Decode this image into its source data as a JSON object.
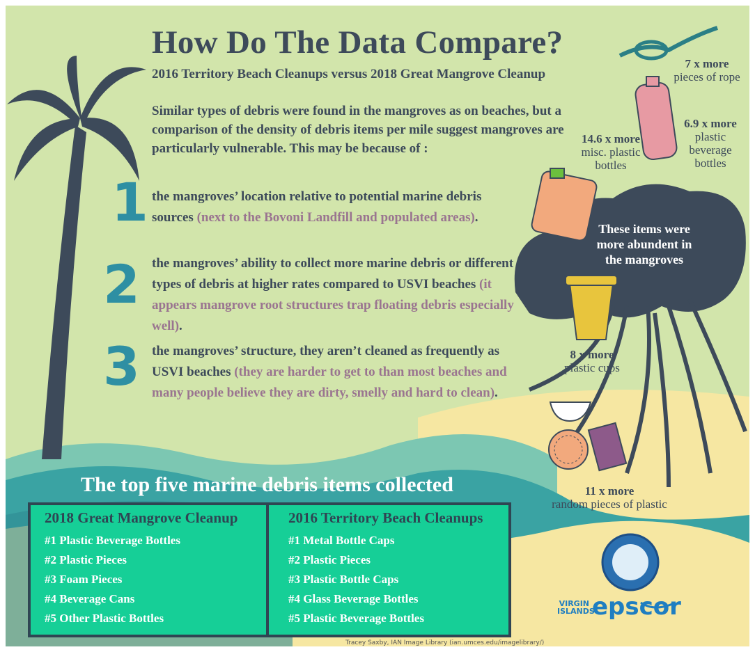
{
  "header": {
    "title": "How Do The Data Compare?",
    "subtitle": "2016 Territory Beach Cleanups versus 2018 Great Mangrove Cleanup"
  },
  "intro": "Similar types of debris were found in the mangroves as on beaches, but a comparison of the density of debris items per mile suggest mangroves are particularly vulnerable. This may be because of :",
  "reasons": [
    {
      "number": "1",
      "text": "the mangroves’ location relative to potential marine debris sources",
      "note": "(next to the Bovoni Landfill and populated areas)",
      "end": "."
    },
    {
      "number": "2",
      "text": "the mangroves’ ability to collect more marine debris or different types of debris at higher rates compared to USVI beaches",
      "note": "(it appears mangrove root structures trap floating debris especially well)",
      "end": "."
    },
    {
      "number": "3",
      "text": "the mangroves’ structure, they aren’t cleaned as frequently as USVI beaches",
      "note": "(they are harder to get to than most beaches and many people believe they are dirty, smelly and hard to clean)",
      "end": "."
    }
  ],
  "callouts": [
    {
      "amount": "7 x more",
      "item": "pieces of rope"
    },
    {
      "amount": "6.9 x more",
      "item": "plastic beverage bottles"
    },
    {
      "amount": "14.6 x more",
      "item": "misc. plastic bottles"
    },
    {
      "amount": "8 x more",
      "item": "plastic cups"
    },
    {
      "amount": "11 x more",
      "item": "random pieces of plastic"
    }
  ],
  "mangrove_note": "These items were more abundent in the mangroves",
  "table": {
    "title": "The top five marine debris items collected",
    "columns": [
      {
        "heading": "2018 Great Mangrove Cleanup",
        "items": [
          "#1  Plastic Beverage Bottles",
          "#2 Plastic Pieces",
          "#3 Foam Pieces",
          "#4 Beverage Cans",
          "#5 Other Plastic  Bottles"
        ]
      },
      {
        "heading": "2016 Territory Beach Cleanups",
        "items": [
          "#1  Metal Bottle Caps",
          "#2 Plastic Pieces",
          "#3 Plastic Bottle Caps",
          "#4 Glass Beverage Bottles",
          "#5 Plastic Beverage Bottles"
        ]
      }
    ]
  },
  "logos": {
    "virgin_islands": "VIRGIN ISLANDS",
    "epscor": "epscor"
  },
  "credit": "Tracey Saxby, IAN Image Library (ian.umces.edu/imagelibrary/)"
}
